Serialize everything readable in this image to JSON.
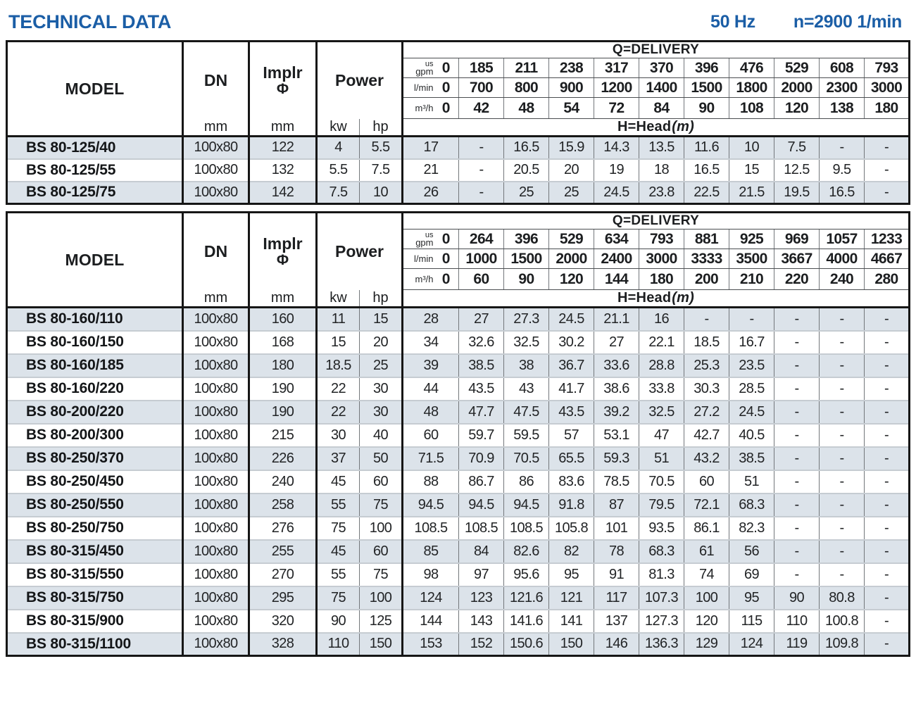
{
  "colors": {
    "accent_blue": "#1b5ea6",
    "row_shade": "#dce3ea",
    "border_black": "#161616"
  },
  "header": {
    "title": "TECHNICAL DATA",
    "frequency": "50 Hz",
    "speed": "n=2900 1/min"
  },
  "labels": {
    "model": "MODEL",
    "dn": "DN",
    "implr_line1": "Implr",
    "implr_phi": "Φ",
    "power": "Power",
    "unit_mm": "mm",
    "unit_kw": "kw",
    "unit_hp": "hp",
    "q_delivery": "Q=DELIVERY",
    "h_head": "H=Head",
    "h_head_unit": "(m)",
    "us": "us",
    "gpm": "gpm",
    "lmin": "l/min",
    "m3h": "m³/h"
  },
  "tables": [
    {
      "delivery": {
        "usgpm": [
          "0",
          "185",
          "211",
          "238",
          "317",
          "370",
          "396",
          "476",
          "529",
          "608",
          "793"
        ],
        "lmin": [
          "0",
          "700",
          "800",
          "900",
          "1200",
          "1400",
          "1500",
          "1800",
          "2000",
          "2300",
          "3000"
        ],
        "m3h": [
          "0",
          "42",
          "48",
          "54",
          "72",
          "84",
          "90",
          "108",
          "120",
          "138",
          "180"
        ]
      },
      "rows": [
        {
          "model": "BS 80-125/40",
          "dn": "100x80",
          "implr": "122",
          "kw": "4",
          "hp": "5.5",
          "head": [
            "17",
            "-",
            "16.5",
            "15.9",
            "14.3",
            "13.5",
            "11.6",
            "10",
            "7.5",
            "-",
            "-"
          ]
        },
        {
          "model": "BS 80-125/55",
          "dn": "100x80",
          "implr": "132",
          "kw": "5.5",
          "hp": "7.5",
          "head": [
            "21",
            "-",
            "20.5",
            "20",
            "19",
            "18",
            "16.5",
            "15",
            "12.5",
            "9.5",
            "-"
          ]
        },
        {
          "model": "BS 80-125/75",
          "dn": "100x80",
          "implr": "142",
          "kw": "7.5",
          "hp": "10",
          "head": [
            "26",
            "-",
            "25",
            "25",
            "24.5",
            "23.8",
            "22.5",
            "21.5",
            "19.5",
            "16.5",
            "-"
          ]
        }
      ]
    },
    {
      "delivery": {
        "usgpm": [
          "0",
          "264",
          "396",
          "529",
          "634",
          "793",
          "881",
          "925",
          "969",
          "1057",
          "1233"
        ],
        "lmin": [
          "0",
          "1000",
          "1500",
          "2000",
          "2400",
          "3000",
          "3333",
          "3500",
          "3667",
          "4000",
          "4667"
        ],
        "m3h": [
          "0",
          "60",
          "90",
          "120",
          "144",
          "180",
          "200",
          "210",
          "220",
          "240",
          "280"
        ]
      },
      "rows": [
        {
          "model": "BS 80-160/110",
          "dn": "100x80",
          "implr": "160",
          "kw": "11",
          "hp": "15",
          "head": [
            "28",
            "27",
            "27.3",
            "24.5",
            "21.1",
            "16",
            "-",
            "-",
            "-",
            "-",
            "-"
          ]
        },
        {
          "model": "BS 80-160/150",
          "dn": "100x80",
          "implr": "168",
          "kw": "15",
          "hp": "20",
          "head": [
            "34",
            "32.6",
            "32.5",
            "30.2",
            "27",
            "22.1",
            "18.5",
            "16.7",
            "-",
            "-",
            "-"
          ]
        },
        {
          "model": "BS 80-160/185",
          "dn": "100x80",
          "implr": "180",
          "kw": "18.5",
          "hp": "25",
          "head": [
            "39",
            "38.5",
            "38",
            "36.7",
            "33.6",
            "28.8",
            "25.3",
            "23.5",
            "-",
            "-",
            "-"
          ]
        },
        {
          "model": "BS 80-160/220",
          "dn": "100x80",
          "implr": "190",
          "kw": "22",
          "hp": "30",
          "head": [
            "44",
            "43.5",
            "43",
            "41.7",
            "38.6",
            "33.8",
            "30.3",
            "28.5",
            "-",
            "-",
            "-"
          ]
        },
        {
          "model": "BS 80-200/220",
          "dn": "100x80",
          "implr": "190",
          "kw": "22",
          "hp": "30",
          "head": [
            "48",
            "47.7",
            "47.5",
            "43.5",
            "39.2",
            "32.5",
            "27.2",
            "24.5",
            "-",
            "-",
            "-"
          ]
        },
        {
          "model": "BS 80-200/300",
          "dn": "100x80",
          "implr": "215",
          "kw": "30",
          "hp": "40",
          "head": [
            "60",
            "59.7",
            "59.5",
            "57",
            "53.1",
            "47",
            "42.7",
            "40.5",
            "-",
            "-",
            "-"
          ]
        },
        {
          "model": "BS 80-250/370",
          "dn": "100x80",
          "implr": "226",
          "kw": "37",
          "hp": "50",
          "head": [
            "71.5",
            "70.9",
            "70.5",
            "65.5",
            "59.3",
            "51",
            "43.2",
            "38.5",
            "-",
            "-",
            "-"
          ]
        },
        {
          "model": "BS 80-250/450",
          "dn": "100x80",
          "implr": "240",
          "kw": "45",
          "hp": "60",
          "head": [
            "88",
            "86.7",
            "86",
            "83.6",
            "78.5",
            "70.5",
            "60",
            "51",
            "-",
            "-",
            "-"
          ]
        },
        {
          "model": "BS 80-250/550",
          "dn": "100x80",
          "implr": "258",
          "kw": "55",
          "hp": "75",
          "head": [
            "94.5",
            "94.5",
            "94.5",
            "91.8",
            "87",
            "79.5",
            "72.1",
            "68.3",
            "-",
            "-",
            "-"
          ]
        },
        {
          "model": "BS 80-250/750",
          "dn": "100x80",
          "implr": "276",
          "kw": "75",
          "hp": "100",
          "head": [
            "108.5",
            "108.5",
            "108.5",
            "105.8",
            "101",
            "93.5",
            "86.1",
            "82.3",
            "-",
            "-",
            "-"
          ]
        },
        {
          "model": "BS 80-315/450",
          "dn": "100x80",
          "implr": "255",
          "kw": "45",
          "hp": "60",
          "head": [
            "85",
            "84",
            "82.6",
            "82",
            "78",
            "68.3",
            "61",
            "56",
            "-",
            "-",
            "-"
          ]
        },
        {
          "model": "BS 80-315/550",
          "dn": "100x80",
          "implr": "270",
          "kw": "55",
          "hp": "75",
          "head": [
            "98",
            "97",
            "95.6",
            "95",
            "91",
            "81.3",
            "74",
            "69",
            "-",
            "-",
            "-"
          ]
        },
        {
          "model": "BS 80-315/750",
          "dn": "100x80",
          "implr": "295",
          "kw": "75",
          "hp": "100",
          "head": [
            "124",
            "123",
            "121.6",
            "121",
            "117",
            "107.3",
            "100",
            "95",
            "90",
            "80.8",
            "-"
          ]
        },
        {
          "model": "BS 80-315/900",
          "dn": "100x80",
          "implr": "320",
          "kw": "90",
          "hp": "125",
          "head": [
            "144",
            "143",
            "141.6",
            "141",
            "137",
            "127.3",
            "120",
            "115",
            "110",
            "100.8",
            "-"
          ]
        },
        {
          "model": "BS 80-315/1100",
          "dn": "100x80",
          "implr": "328",
          "kw": "110",
          "hp": "150",
          "head": [
            "153",
            "152",
            "150.6",
            "150",
            "146",
            "136.3",
            "129",
            "124",
            "119",
            "109.8",
            "-"
          ]
        }
      ]
    }
  ]
}
